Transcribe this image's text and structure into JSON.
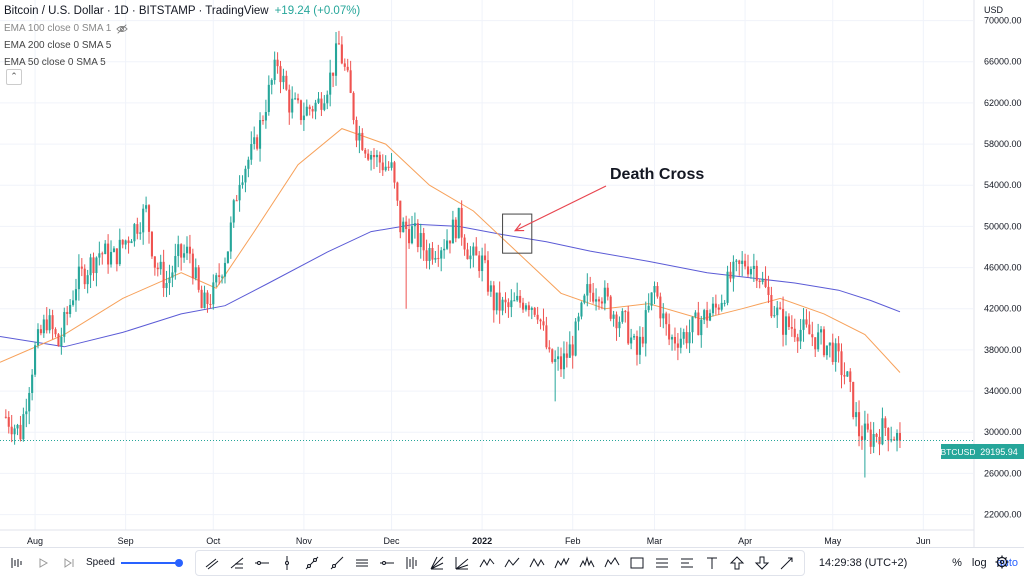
{
  "header": {
    "symbol_title": "Bitcoin / U.S. Dollar · 1D · BITSTAMP · TradingView",
    "change": "+19.24 (+0.07%)",
    "indicators": [
      {
        "label": "EMA 100 close 0 SMA 1",
        "hidden": true
      },
      {
        "label": "EMA 200 close 0 SMA 5",
        "hidden": false
      },
      {
        "label": "EMA 50 close 0 SMA 5",
        "hidden": false
      }
    ],
    "currency": "USD"
  },
  "chart_data": {
    "type": "candlestick",
    "title": "Bitcoin / U.S. Dollar · 1D · BITSTAMP",
    "ylim": [
      20500,
      72000
    ],
    "y_ticks": [
      22000,
      26000,
      30000,
      34000,
      38000,
      42000,
      46000,
      50000,
      54000,
      58000,
      62000,
      66000,
      70000
    ],
    "y_tick_labels": [
      "22000.00",
      "26000.00",
      "30000.00",
      "34000.00",
      "38000.00",
      "42000.00",
      "46000.00",
      "50000.00",
      "54000.00",
      "58000.00",
      "62000.00",
      "66000.00",
      "70000.00"
    ],
    "x_labels": [
      {
        "label": "Aug",
        "day": 10
      },
      {
        "label": "Sep",
        "day": 41
      },
      {
        "label": "Oct",
        "day": 71
      },
      {
        "label": "Nov",
        "day": 102
      },
      {
        "label": "Dec",
        "day": 132
      },
      {
        "label": "2022",
        "day": 163,
        "bold": true
      },
      {
        "label": "Feb",
        "day": 194
      },
      {
        "label": "Mar",
        "day": 222
      },
      {
        "label": "Apr",
        "day": 253
      },
      {
        "label": "May",
        "day": 283
      },
      {
        "label": "Jun",
        "day": 314
      }
    ],
    "x_range_days": [
      -2,
      331
    ],
    "price_anchors": [
      {
        "day": 0,
        "price": 31500
      },
      {
        "day": 5,
        "price": 30000
      },
      {
        "day": 10,
        "price": 38000
      },
      {
        "day": 14,
        "price": 41000
      },
      {
        "day": 18,
        "price": 38500
      },
      {
        "day": 24,
        "price": 44500
      },
      {
        "day": 32,
        "price": 47500
      },
      {
        "day": 37,
        "price": 47000
      },
      {
        "day": 43,
        "price": 49500
      },
      {
        "day": 48,
        "price": 51500
      },
      {
        "day": 51,
        "price": 46500
      },
      {
        "day": 55,
        "price": 44500
      },
      {
        "day": 59,
        "price": 47000
      },
      {
        "day": 63,
        "price": 47500
      },
      {
        "day": 67,
        "price": 42000
      },
      {
        "day": 71,
        "price": 43500
      },
      {
        "day": 76,
        "price": 48000
      },
      {
        "day": 80,
        "price": 55000
      },
      {
        "day": 85,
        "price": 57500
      },
      {
        "day": 89,
        "price": 62000
      },
      {
        "day": 93,
        "price": 66000
      },
      {
        "day": 97,
        "price": 62000
      },
      {
        "day": 101,
        "price": 61000
      },
      {
        "day": 107,
        "price": 62000
      },
      {
        "day": 111,
        "price": 64500
      },
      {
        "day": 114,
        "price": 67500
      },
      {
        "day": 117,
        "price": 64000
      },
      {
        "day": 120,
        "price": 59500
      },
      {
        "day": 124,
        "price": 57500
      },
      {
        "day": 127,
        "price": 56500
      },
      {
        "day": 132,
        "price": 55500
      },
      {
        "day": 135,
        "price": 50000
      },
      {
        "day": 139,
        "price": 49500
      },
      {
        "day": 144,
        "price": 47500
      },
      {
        "day": 150,
        "price": 48500
      },
      {
        "day": 155,
        "price": 50500
      },
      {
        "day": 159,
        "price": 47000
      },
      {
        "day": 163,
        "price": 46500
      },
      {
        "day": 167,
        "price": 42500
      },
      {
        "day": 172,
        "price": 42000
      },
      {
        "day": 178,
        "price": 43000
      },
      {
        "day": 182,
        "price": 42000
      },
      {
        "day": 186,
        "price": 37000
      },
      {
        "day": 190,
        "price": 36500
      },
      {
        "day": 194,
        "price": 38500
      },
      {
        "day": 199,
        "price": 43500
      },
      {
        "day": 203,
        "price": 44000
      },
      {
        "day": 207,
        "price": 42000
      },
      {
        "day": 212,
        "price": 40500
      },
      {
        "day": 216,
        "price": 37500
      },
      {
        "day": 222,
        "price": 44000
      },
      {
        "day": 227,
        "price": 39000
      },
      {
        "day": 233,
        "price": 39500
      },
      {
        "day": 238,
        "price": 41000
      },
      {
        "day": 243,
        "price": 42000
      },
      {
        "day": 248,
        "price": 45000
      },
      {
        "day": 253,
        "price": 46500
      },
      {
        "day": 257,
        "price": 46000
      },
      {
        "day": 261,
        "price": 43000
      },
      {
        "day": 266,
        "price": 40500
      },
      {
        "day": 272,
        "price": 40000
      },
      {
        "day": 278,
        "price": 39000
      },
      {
        "day": 283,
        "price": 38000
      },
      {
        "day": 288,
        "price": 35000
      },
      {
        "day": 292,
        "price": 30000
      },
      {
        "day": 296,
        "price": 29500
      },
      {
        "day": 301,
        "price": 30500
      },
      {
        "day": 306,
        "price": 29200
      }
    ],
    "ema50_points": [
      {
        "day": -2,
        "price": 36800
      },
      {
        "day": 20,
        "price": 39500
      },
      {
        "day": 40,
        "price": 43000
      },
      {
        "day": 60,
        "price": 45500
      },
      {
        "day": 72,
        "price": 44000
      },
      {
        "day": 85,
        "price": 49500
      },
      {
        "day": 100,
        "price": 56000
      },
      {
        "day": 115,
        "price": 59500
      },
      {
        "day": 130,
        "price": 58000
      },
      {
        "day": 145,
        "price": 54000
      },
      {
        "day": 160,
        "price": 51500
      },
      {
        "day": 175,
        "price": 47500
      },
      {
        "day": 190,
        "price": 43500
      },
      {
        "day": 205,
        "price": 42000
      },
      {
        "day": 220,
        "price": 42500
      },
      {
        "day": 238,
        "price": 41000
      },
      {
        "day": 252,
        "price": 42000
      },
      {
        "day": 265,
        "price": 43000
      },
      {
        "day": 280,
        "price": 41500
      },
      {
        "day": 294,
        "price": 39500
      },
      {
        "day": 306,
        "price": 35800
      }
    ],
    "ema200_points": [
      {
        "day": -2,
        "price": 39300
      },
      {
        "day": 20,
        "price": 38300
      },
      {
        "day": 40,
        "price": 39700
      },
      {
        "day": 60,
        "price": 41500
      },
      {
        "day": 75,
        "price": 42300
      },
      {
        "day": 90,
        "price": 44500
      },
      {
        "day": 110,
        "price": 47500
      },
      {
        "day": 125,
        "price": 49500
      },
      {
        "day": 140,
        "price": 50200
      },
      {
        "day": 155,
        "price": 50000
      },
      {
        "day": 170,
        "price": 49200
      },
      {
        "day": 185,
        "price": 48500
      },
      {
        "day": 200,
        "price": 47600
      },
      {
        "day": 220,
        "price": 46600
      },
      {
        "day": 240,
        "price": 45500
      },
      {
        "day": 255,
        "price": 45000
      },
      {
        "day": 270,
        "price": 44500
      },
      {
        "day": 285,
        "price": 43800
      },
      {
        "day": 296,
        "price": 42800
      },
      {
        "day": 306,
        "price": 41700
      }
    ],
    "last_price": 29195.94,
    "last_price_label": "29195.94",
    "symbol_badge": "BTCUSD",
    "annotation": {
      "text": "Death Cross",
      "box_day": [
        170,
        180
      ],
      "box_price": [
        47400,
        51200
      ]
    }
  },
  "toolbar": {
    "speed_label": "Speed",
    "time": "14:29:38 (UTC+2)",
    "percent": "%",
    "log": "log",
    "auto": "auto"
  },
  "colors": {
    "up": "#26a69a",
    "down": "#ef5350",
    "ema50": "#f7a15a",
    "ema200": "#5b5bd6",
    "annotation": "#e8454f",
    "accent": "#2962ff"
  }
}
